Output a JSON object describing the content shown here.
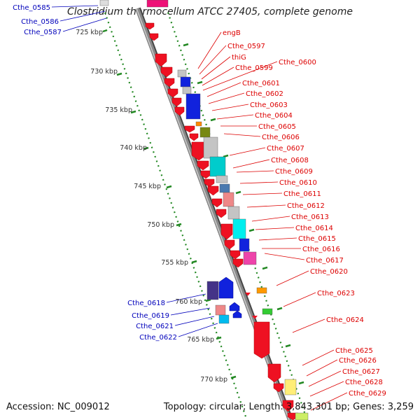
{
  "title": "Clostridium thermocellum ATCC 27405, complete genome",
  "footer": {
    "accession": "Accession: NC_009012",
    "topology": "Topology: circular; Length: 3,843,301 bp; Genes: 3,259"
  },
  "colors": {
    "forward_label": "#dd0000",
    "reverse_label": "#0000bb",
    "scale_ticks": "#228822",
    "backbone": "#888888"
  },
  "scale_labels": [
    "725 kbp",
    "730 kbp",
    "735 kbp",
    "740 kbp",
    "745 kbp",
    "750 kbp",
    "755 kbp",
    "760 kbp",
    "765 kbp",
    "770 kbp"
  ],
  "forward_genes": [
    "engB",
    "Cthe_0597",
    "thiG",
    "Cthe_0599",
    "Cthe_0600",
    "Cthe_0601",
    "Cthe_0602",
    "Cthe_0603",
    "Cthe_0604",
    "Cthe_0605",
    "Cthe_0606",
    "Cthe_0607",
    "Cthe_0608",
    "Cthe_0609",
    "Cthe_0610",
    "Cthe_0611",
    "Cthe_0612",
    "Cthe_0613",
    "Cthe_0614",
    "Cthe_0615",
    "Cthe_0616",
    "Cthe_0617",
    "Cthe_0620",
    "Cthe_0623",
    "Cthe_0624",
    "Cthe_0625",
    "Cthe_0626",
    "Cthe_0627",
    "Cthe_0628",
    "Cthe_0629"
  ],
  "reverse_genes": [
    "Cthe_0585",
    "Cthe_0586",
    "Cthe_0587",
    "Cthe_0618",
    "Cthe_0619",
    "Cthe_0621",
    "Cthe_0622"
  ]
}
